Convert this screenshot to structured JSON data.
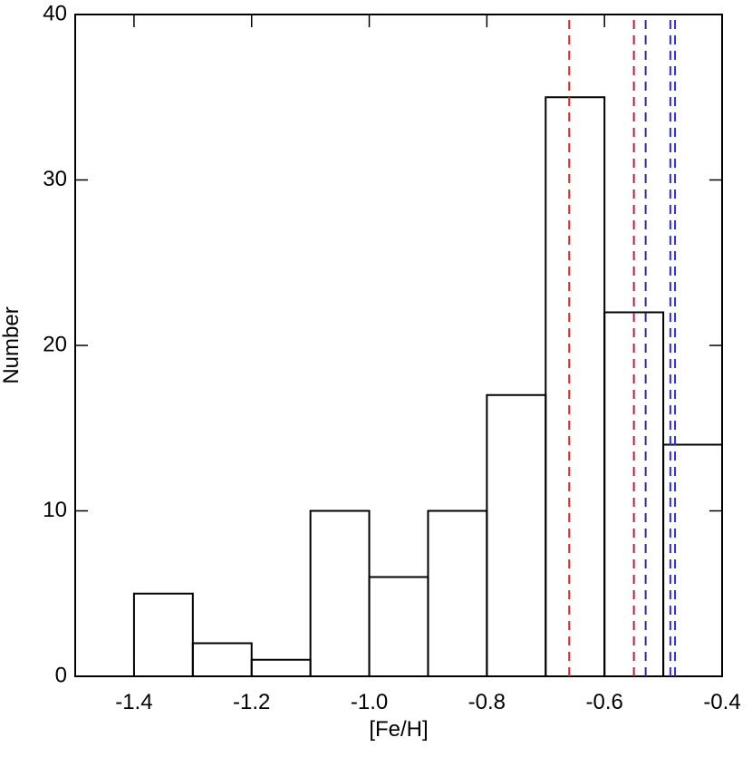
{
  "chart_data": {
    "type": "histogram",
    "xlabel": "[Fe/H]",
    "ylabel": "Number",
    "bins": [
      -1.4,
      -1.3,
      -1.2,
      -1.1,
      -1.0,
      -0.9,
      -0.8,
      -0.7,
      -0.6,
      -0.5,
      -0.4
    ],
    "values": [
      5,
      2,
      1,
      10,
      6,
      10,
      17,
      35,
      22,
      14
    ],
    "color": "#000000",
    "xlim": [
      -1.5,
      -0.4
    ],
    "xticks": [
      -1.4,
      -1.2,
      {
        "value": -1.0,
        "label": "-1.0"
      },
      -0.8,
      -0.6,
      -0.4
    ],
    "ylim": [
      0,
      40
    ],
    "yticks": [
      0,
      10,
      20,
      30,
      40
    ],
    "vlines": [
      {
        "x": -0.66,
        "color": "#e8241c"
      },
      {
        "x": -0.55,
        "color": "#c21e3c"
      },
      {
        "x": -0.53,
        "color": "#3b22a8"
      },
      {
        "x": -0.488,
        "color": "#2a2ee8"
      },
      {
        "x": -0.48,
        "color": "#2a2ee8"
      }
    ]
  }
}
